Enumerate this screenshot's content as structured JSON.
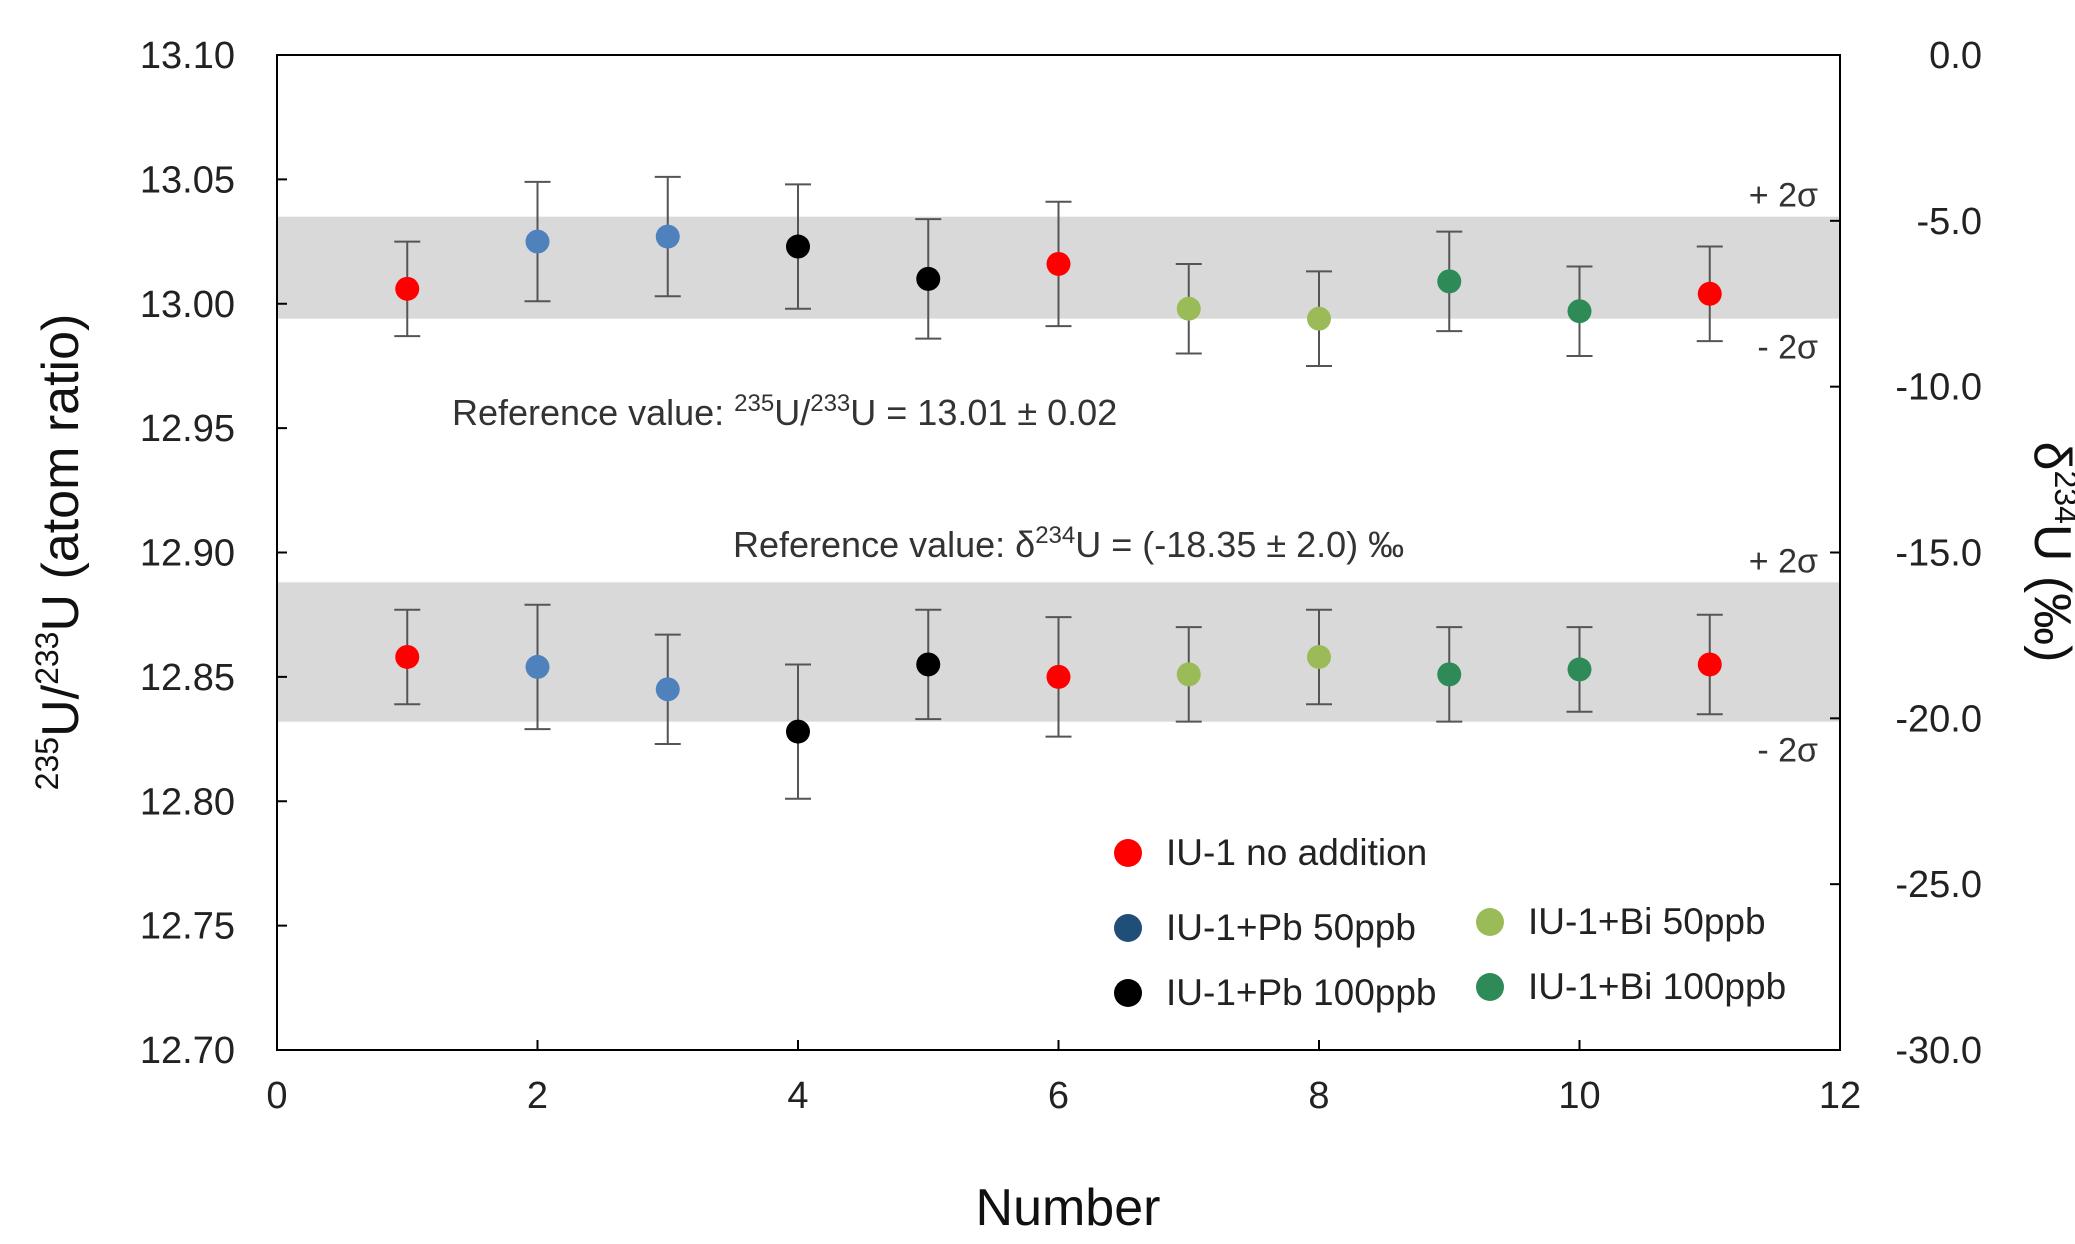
{
  "chart_data": {
    "type": "scatter",
    "xlabel": "Number",
    "ylabel_left": {
      "pre": "235",
      "a": "U/",
      "mid": "233",
      "b": "U (atom ratio)"
    },
    "ylabel_right": {
      "a": "δ",
      "sup": "234",
      "b": "U (‰)"
    },
    "xlim": [
      0,
      12
    ],
    "ylim_left": [
      12.7,
      13.1
    ],
    "ylim_right": [
      -30.0,
      0.0
    ],
    "x_ticks": [
      "0",
      "2",
      "4",
      "6",
      "8",
      "10",
      "12"
    ],
    "y_left_ticks": [
      "12.70",
      "12.75",
      "12.80",
      "12.85",
      "12.90",
      "12.95",
      "13.00",
      "13.05",
      "13.10"
    ],
    "y_right_ticks": [
      "-30.0",
      "-25.0",
      "-20.0",
      "-15.0",
      "-10.0",
      "-5.0",
      "0.0"
    ],
    "bands": [
      {
        "axis": "left",
        "upper": 13.035,
        "lower": 12.994,
        "upper_label": "+ 2σ",
        "lower_label": "- 2σ"
      },
      {
        "axis": "left",
        "upper": 12.888,
        "lower": 12.832,
        "upper_label": "+ 2σ",
        "lower_label": "- 2σ"
      }
    ],
    "annotations": [
      {
        "parts": [
          "Reference value: ",
          "235",
          "U/",
          "233",
          "U = 13.01 ",
          "± 0.02"
        ],
        "sup": [
          1,
          3
        ]
      },
      {
        "parts": [
          "Reference value: δ",
          "234",
          "U = (-18.35 ",
          "± 2.0) ‰"
        ],
        "sup": [
          1
        ]
      }
    ],
    "series": [
      {
        "name": "IU-1 no addition",
        "color": "#ff0000",
        "legend_color": "#ff0000",
        "x": [
          1,
          6,
          11
        ],
        "ratio": [
          13.006,
          13.016,
          13.004
        ],
        "ratio_err": [
          0.019,
          0.025,
          0.019
        ],
        "delta_as_left": [
          12.858,
          12.85,
          12.855
        ],
        "delta_err": [
          0.019,
          0.024,
          0.02
        ]
      },
      {
        "name": "IU-1+Pb  50ppb",
        "color": "#4f81bd",
        "legend_color": "#1f4e79",
        "x": [
          2,
          3
        ],
        "ratio": [
          13.025,
          13.027
        ],
        "ratio_err": [
          0.024,
          0.024
        ],
        "delta_as_left": [
          12.854,
          12.845
        ],
        "delta_err": [
          0.025,
          0.022
        ]
      },
      {
        "name": "IU-1+Pb 100ppb",
        "color": "#000000",
        "legend_color": "#000000",
        "x": [
          4,
          5
        ],
        "ratio": [
          13.023,
          13.01
        ],
        "ratio_err": [
          0.025,
          0.024
        ],
        "delta_as_left": [
          12.828,
          12.855
        ],
        "delta_err": [
          0.027,
          0.022
        ]
      },
      {
        "name": "IU-1+Bi   50ppb",
        "color": "#9bbb59",
        "legend_color": "#9bbb59",
        "x": [
          7,
          8
        ],
        "ratio": [
          12.998,
          12.994
        ],
        "ratio_err": [
          0.018,
          0.019
        ],
        "delta_as_left": [
          12.851,
          12.858
        ],
        "delta_err": [
          0.019,
          0.019
        ]
      },
      {
        "name": "IU-1+Bi 100ppb",
        "color": "#2e8b57",
        "legend_color": "#2e8b57",
        "x": [
          9,
          10
        ],
        "ratio": [
          13.009,
          12.997
        ],
        "ratio_err": [
          0.02,
          0.018
        ],
        "delta_as_left": [
          12.851,
          12.853
        ],
        "delta_err": [
          0.019,
          0.017
        ]
      }
    ]
  }
}
